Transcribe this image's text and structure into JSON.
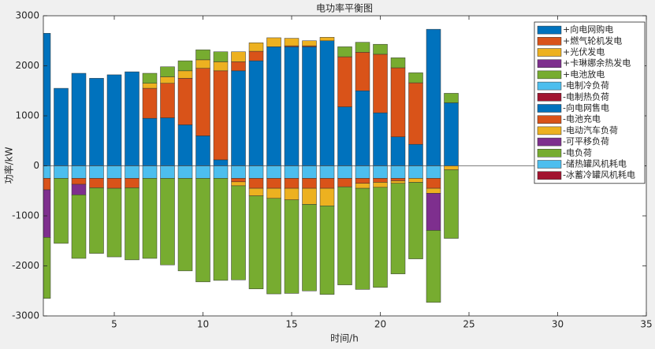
{
  "chart_data": {
    "type": "stacked_bar",
    "title": "电功率平衡图",
    "x_label": "时间/h",
    "y_label": "功率/kW",
    "x": [
      1,
      2,
      3,
      4,
      5,
      6,
      7,
      8,
      9,
      10,
      11,
      12,
      13,
      14,
      15,
      16,
      17,
      18,
      19,
      20,
      21,
      22,
      23,
      24
    ],
    "xlim": [
      1,
      35
    ],
    "xticks": [
      5,
      10,
      15,
      20,
      25,
      30,
      35
    ],
    "ylim": [
      -3000,
      3000
    ],
    "yticks": [
      -3000,
      -2000,
      -1000,
      0,
      1000,
      2000,
      3000
    ],
    "legend": "upper right",
    "series": [
      {
        "name": "+向电网购电",
        "color": "#0072BD",
        "values": [
          2650,
          1550,
          1850,
          1750,
          1820,
          1880,
          950,
          960,
          820,
          600,
          120,
          1900,
          2100,
          2380,
          2380,
          2380,
          2500,
          1180,
          1500,
          1060,
          580,
          430,
          2730,
          1260
        ]
      },
      {
        "name": "+燃气轮机发电",
        "color": "#D95319",
        "values": [
          0,
          0,
          0,
          0,
          0,
          0,
          600,
          690,
          930,
          1350,
          1780,
          180,
          190,
          0,
          20,
          20,
          0,
          1000,
          770,
          1170,
          1380,
          1230,
          0,
          0
        ]
      },
      {
        "name": "+光伏发电",
        "color": "#EDB120",
        "values": [
          0,
          0,
          0,
          0,
          0,
          0,
          100,
          130,
          150,
          170,
          180,
          200,
          170,
          180,
          150,
          100,
          70,
          0,
          0,
          0,
          0,
          0,
          0,
          0
        ]
      },
      {
        "name": "+卡琳娜余热发电",
        "color": "#7E2F8E",
        "values": [
          0,
          0,
          0,
          0,
          0,
          0,
          0,
          0,
          0,
          0,
          0,
          0,
          0,
          0,
          0,
          0,
          0,
          0,
          0,
          0,
          0,
          0,
          0,
          0
        ]
      },
      {
        "name": "+电池放电",
        "color": "#77AC30",
        "values": [
          0,
          0,
          0,
          0,
          0,
          0,
          200,
          200,
          200,
          200,
          200,
          0,
          0,
          0,
          0,
          0,
          0,
          200,
          200,
          200,
          200,
          200,
          0,
          190
        ]
      },
      {
        "name": "-电制冷负荷",
        "color": "#4DBEEE",
        "values": [
          -250,
          -250,
          -250,
          -250,
          -250,
          -250,
          -250,
          -250,
          -250,
          -250,
          -250,
          -250,
          -250,
          -250,
          -250,
          -250,
          -250,
          -250,
          -250,
          -250,
          -250,
          -250,
          -250,
          0
        ]
      },
      {
        "name": "-电制热负荷",
        "color": "#A2142F",
        "values": [
          0,
          0,
          0,
          0,
          0,
          0,
          0,
          0,
          0,
          0,
          0,
          0,
          0,
          0,
          0,
          0,
          0,
          0,
          0,
          0,
          0,
          0,
          0,
          0
        ]
      },
      {
        "name": "-向电网售电",
        "color": "#0072BD",
        "values": [
          0,
          0,
          0,
          0,
          0,
          0,
          0,
          0,
          0,
          0,
          0,
          0,
          0,
          0,
          0,
          0,
          0,
          0,
          0,
          0,
          0,
          0,
          0,
          0
        ]
      },
      {
        "name": "-电池充电",
        "color": "#D95319",
        "values": [
          -230,
          0,
          -120,
          -190,
          -200,
          -190,
          0,
          0,
          0,
          0,
          0,
          -70,
          -200,
          -200,
          -200,
          -200,
          -200,
          -170,
          -100,
          -80,
          -50,
          0,
          -200,
          0
        ]
      },
      {
        "name": "-电动汽车负荷",
        "color": "#EDB120",
        "values": [
          0,
          0,
          0,
          0,
          0,
          0,
          0,
          0,
          0,
          0,
          0,
          -80,
          -150,
          -200,
          -230,
          -320,
          -350,
          0,
          -100,
          -100,
          -50,
          -80,
          -100,
          -80
        ]
      },
      {
        "name": "-可平移负荷",
        "color": "#7E2F8E",
        "values": [
          -950,
          0,
          -210,
          0,
          0,
          0,
          0,
          0,
          0,
          0,
          0,
          0,
          0,
          0,
          0,
          0,
          0,
          0,
          0,
          0,
          0,
          0,
          -740,
          0
        ]
      },
      {
        "name": "-电负荷",
        "color": "#77AC30",
        "values": [
          -1220,
          -1300,
          -1270,
          -1310,
          -1370,
          -1440,
          -1600,
          -1730,
          -1850,
          -2070,
          -2040,
          -1880,
          -1860,
          -1910,
          -1870,
          -1730,
          -1770,
          -1960,
          -2020,
          -2000,
          -1810,
          -1530,
          -1440,
          -1370
        ]
      },
      {
        "name": "-储热罐风机耗电",
        "color": "#4DBEEE",
        "values": [
          0,
          0,
          0,
          0,
          0,
          0,
          0,
          0,
          0,
          0,
          0,
          0,
          0,
          0,
          0,
          0,
          0,
          0,
          0,
          0,
          0,
          0,
          0,
          0
        ]
      },
      {
        "name": "-冰蓄冷罐风机耗电",
        "color": "#A2142F",
        "values": [
          0,
          0,
          0,
          0,
          0,
          0,
          0,
          0,
          0,
          0,
          0,
          0,
          0,
          0,
          0,
          0,
          0,
          0,
          0,
          0,
          0,
          0,
          0,
          0
        ]
      }
    ]
  }
}
